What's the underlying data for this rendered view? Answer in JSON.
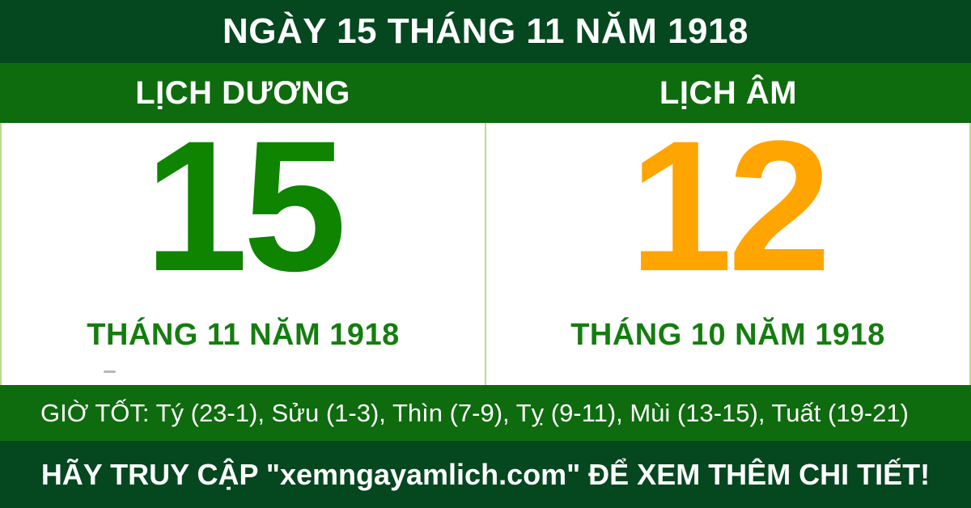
{
  "banner": {
    "title": "NGÀY 15 THÁNG 11 NĂM 1918"
  },
  "columns": {
    "solar": {
      "header": "LỊCH DƯƠNG",
      "day": "15",
      "month": "THÁNG 11 NĂM 1918"
    },
    "lunar": {
      "header": "LỊCH ÂM",
      "day": "12",
      "month": "THÁNG 10 NĂM 1918"
    }
  },
  "good_hours": "GIỜ TỐT: Tý (23-1), Sửu (1-3), Thìn (7-9), Tỵ (9-11), Mùi (13-15), Tuất (19-21)",
  "footer": "HÃY TRUY CẬP \"xemngayamlich.com\" ĐỂ XEM THÊM CHI TIẾT!",
  "colors": {
    "dark_green": "#05471f",
    "medium_green": "#0e6b0e",
    "solar_day_green": "#0e8400",
    "month_label_green": "#157d10",
    "lunar_day_orange": "#ffa502",
    "divider_light_green": "#b5dc8a",
    "text_white": "#ffffff"
  }
}
